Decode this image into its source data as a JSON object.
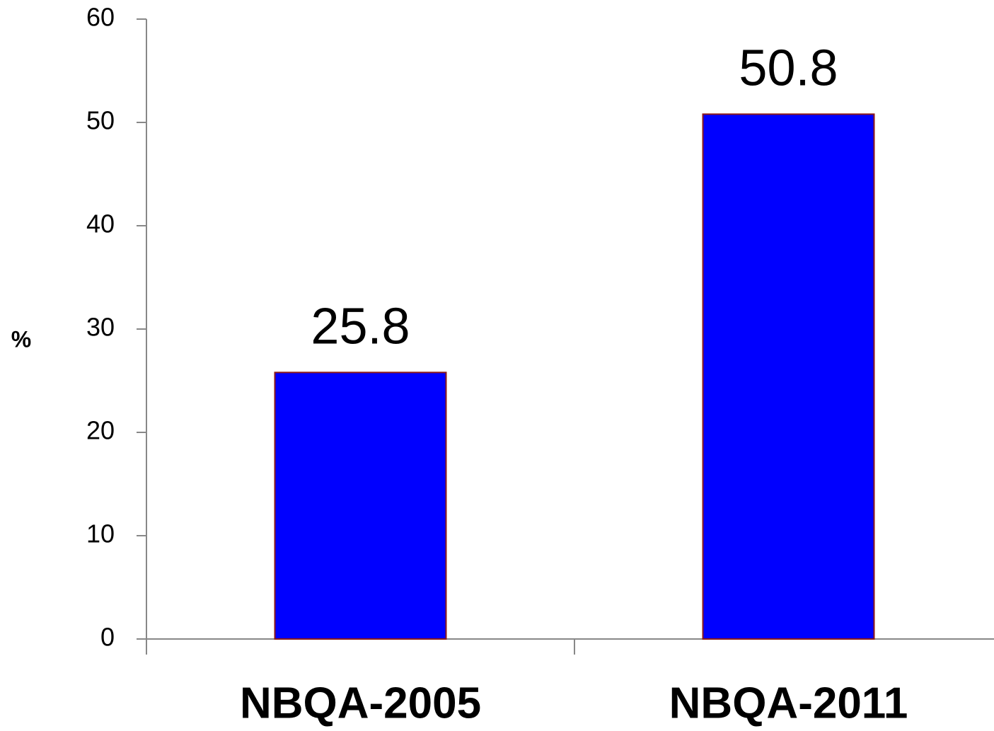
{
  "chart_data": {
    "type": "bar",
    "y_label": "%",
    "categories": [
      "NBQA-2005",
      "NBQA-2011"
    ],
    "values": [
      25.8,
      50.8
    ],
    "color": "#0000ff",
    "edge_color": "#8b1a1a",
    "ylim": [
      0,
      60
    ],
    "yticks": [
      0,
      10,
      20,
      30,
      40,
      50,
      60
    ],
    "grid": false
  }
}
